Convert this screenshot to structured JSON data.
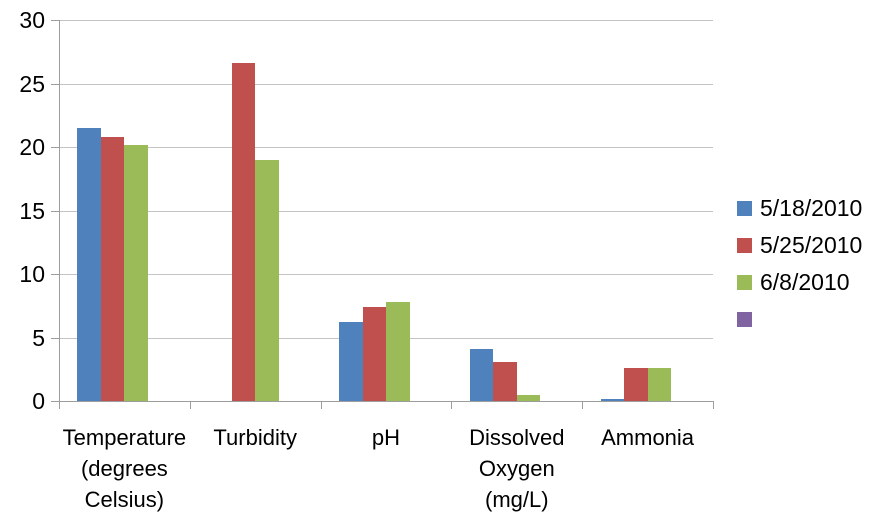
{
  "chart_data": {
    "type": "bar",
    "title": "",
    "xlabel": "",
    "ylabel": "",
    "ylim": [
      0,
      30
    ],
    "yticks": [
      0,
      5,
      10,
      15,
      20,
      25,
      30
    ],
    "grid": true,
    "legend_position": "right",
    "categories": [
      [
        "Temperature",
        "(degrees",
        "Celsius)"
      ],
      [
        "Turbidity"
      ],
      [
        "pH"
      ],
      [
        "Dissolved",
        "Oxygen",
        "(mg/L)"
      ],
      [
        "Ammonia"
      ]
    ],
    "series": [
      {
        "name": "5/18/2010",
        "color": "#4F81BD",
        "values": [
          21.5,
          0,
          6.2,
          4.1,
          0.2
        ]
      },
      {
        "name": "5/25/2010",
        "color": "#C0504D",
        "values": [
          20.8,
          26.6,
          7.4,
          3.1,
          2.6
        ]
      },
      {
        "name": "6/8/2010",
        "color": "#9BBB59",
        "values": [
          20.2,
          19.0,
          7.8,
          0.5,
          2.6
        ]
      },
      {
        "name": "",
        "color": "#8064A2",
        "values": [
          null,
          null,
          null,
          null,
          null
        ]
      }
    ]
  },
  "colors": {
    "background": "#FFFFFF",
    "gridline": "#C4C4C4",
    "axis": "#9D9D9D",
    "text": "#000000"
  }
}
